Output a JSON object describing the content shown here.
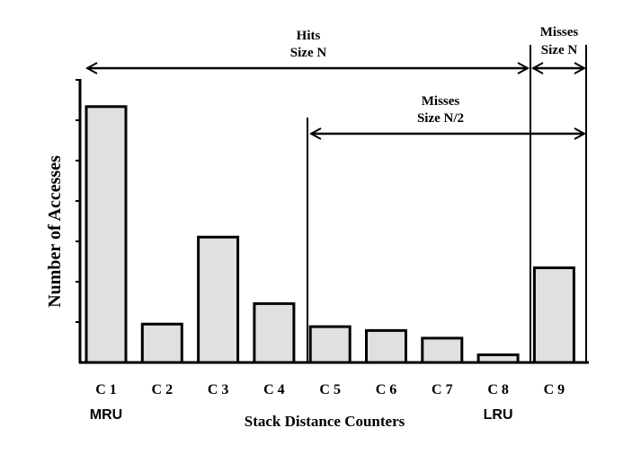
{
  "chart_data": {
    "type": "bar",
    "title": "",
    "xlabel": "Stack Distance Counters",
    "ylabel": "Number of Accesses",
    "categories": [
      "C 1",
      "C 2",
      "C 3",
      "C 4",
      "C 5",
      "C 6",
      "C 7",
      "C 8",
      "C 9"
    ],
    "values": [
      100,
      15,
      49,
      23,
      14,
      12.5,
      9.5,
      3,
      37
    ],
    "ylim": [
      0,
      108
    ],
    "y_tick_labels_shown": false,
    "grid": false,
    "bar_color": "#e0e0e0",
    "bar_edge_color": "#000000",
    "position_labels": [
      {
        "category": "C 1",
        "text": "MRU"
      },
      {
        "category": "C 8",
        "text": "LRU"
      }
    ],
    "annotations": [
      {
        "name": "hits-size-n",
        "line1": "Hits",
        "line2": "Size N",
        "from_category": "C 1",
        "to_boundary": "C 8 | C 9"
      },
      {
        "name": "misses-size-n2",
        "line1": "Misses",
        "line2": "Size N/2",
        "from_boundary": "C 4 | C 5",
        "to_boundary": "right edge"
      },
      {
        "name": "misses-size-n",
        "line1": "Misses",
        "line2": "Size N",
        "from_boundary": "C 8 | C 9",
        "to_boundary": "right edge"
      }
    ]
  }
}
